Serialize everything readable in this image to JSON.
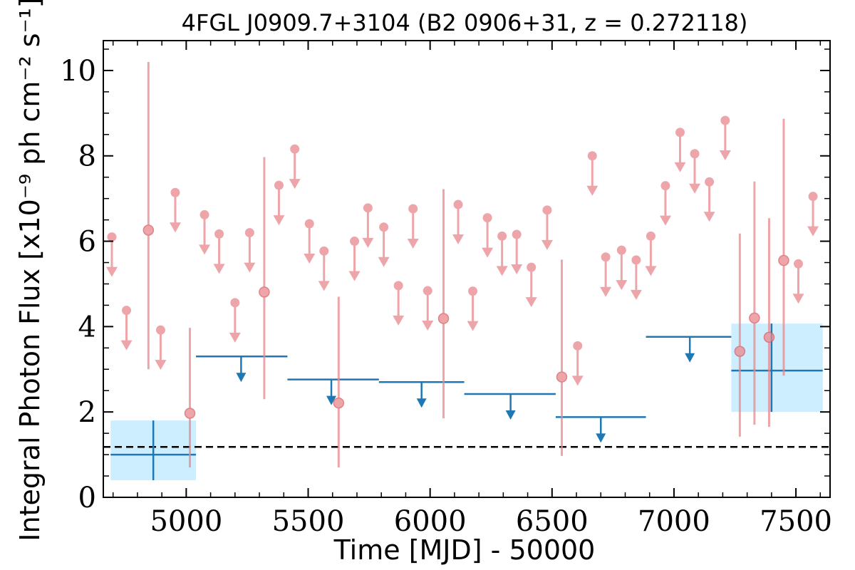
{
  "chart_data": {
    "type": "scatter",
    "title": "4FGL J0909.7+3104 (B2 0906+31, z = 0.272118)",
    "xlabel": "Time [MJD] - 50000",
    "ylabel": "Integral Photon Flux [x10⁻⁹ ph cm⁻² s⁻¹]",
    "xlim": [
      4660,
      7640
    ],
    "ylim": [
      0,
      10.7
    ],
    "x_ticks": [
      5000,
      5500,
      6000,
      6500,
      7000,
      7500
    ],
    "y_ticks": [
      0,
      2,
      4,
      6,
      8,
      10
    ],
    "grid": false,
    "colors": {
      "short_bins": "#e9888d",
      "long_bins": "#1f77b4",
      "detection_band": "#cdeeff",
      "reference_line": "#000000"
    },
    "short_bin_detections": [
      {
        "x": 4845,
        "y": 6.26,
        "ylow": 3.0,
        "yhigh": 10.2
      },
      {
        "x": 5015,
        "y": 1.97,
        "ylow": 0.7,
        "yhigh": 3.97
      },
      {
        "x": 5320,
        "y": 4.81,
        "ylow": 2.3,
        "yhigh": 7.97
      },
      {
        "x": 5625,
        "y": 2.21,
        "ylow": 0.7,
        "yhigh": 4.7
      },
      {
        "x": 6055,
        "y": 4.19,
        "ylow": 1.85,
        "yhigh": 7.22
      },
      {
        "x": 6540,
        "y": 2.82,
        "ylow": 0.97,
        "yhigh": 5.57
      },
      {
        "x": 7270,
        "y": 3.42,
        "ylow": 1.42,
        "yhigh": 6.18
      },
      {
        "x": 7330,
        "y": 4.2,
        "ylow": 1.7,
        "yhigh": 7.4
      },
      {
        "x": 7390,
        "y": 3.75,
        "ylow": 1.65,
        "yhigh": 6.54
      },
      {
        "x": 7450,
        "y": 5.55,
        "ylow": 2.85,
        "yhigh": 8.87
      }
    ],
    "short_bin_upper_limits": [
      {
        "x": 4695,
        "y": 6.1
      },
      {
        "x": 4755,
        "y": 4.38
      },
      {
        "x": 4895,
        "y": 3.92
      },
      {
        "x": 4955,
        "y": 7.14
      },
      {
        "x": 5075,
        "y": 6.62
      },
      {
        "x": 5135,
        "y": 6.17
      },
      {
        "x": 5200,
        "y": 4.56
      },
      {
        "x": 5260,
        "y": 6.2
      },
      {
        "x": 5380,
        "y": 7.31
      },
      {
        "x": 5445,
        "y": 8.16
      },
      {
        "x": 5505,
        "y": 6.41
      },
      {
        "x": 5565,
        "y": 5.77
      },
      {
        "x": 5690,
        "y": 6.0
      },
      {
        "x": 5745,
        "y": 6.78
      },
      {
        "x": 5810,
        "y": 6.33
      },
      {
        "x": 5870,
        "y": 4.96
      },
      {
        "x": 5930,
        "y": 6.76
      },
      {
        "x": 5990,
        "y": 4.84
      },
      {
        "x": 6115,
        "y": 6.86
      },
      {
        "x": 6175,
        "y": 4.83
      },
      {
        "x": 6235,
        "y": 6.55
      },
      {
        "x": 6295,
        "y": 6.12
      },
      {
        "x": 6355,
        "y": 6.16
      },
      {
        "x": 6415,
        "y": 5.39
      },
      {
        "x": 6480,
        "y": 6.73
      },
      {
        "x": 6605,
        "y": 3.55
      },
      {
        "x": 6665,
        "y": 8.0
      },
      {
        "x": 6720,
        "y": 5.63
      },
      {
        "x": 6785,
        "y": 5.79
      },
      {
        "x": 6845,
        "y": 5.56
      },
      {
        "x": 6905,
        "y": 6.12
      },
      {
        "x": 6965,
        "y": 7.3
      },
      {
        "x": 7025,
        "y": 8.55
      },
      {
        "x": 7085,
        "y": 8.05
      },
      {
        "x": 7145,
        "y": 7.39
      },
      {
        "x": 7210,
        "y": 8.83
      },
      {
        "x": 7510,
        "y": 5.47
      },
      {
        "x": 7570,
        "y": 7.05
      }
    ],
    "long_bin_detections": [
      {
        "x": 4865,
        "xmin": 4690,
        "xmax": 5040,
        "y": 1.0,
        "ylow": 0.4,
        "yhigh": 1.8
      },
      {
        "x": 7400,
        "xmin": 7235,
        "xmax": 7610,
        "y": 2.97,
        "ylow": 2.0,
        "yhigh": 4.07
      }
    ],
    "long_bin_upper_limits": [
      {
        "x": 5225,
        "xmin": 5040,
        "xmax": 5415,
        "y": 3.3
      },
      {
        "x": 5595,
        "xmin": 5415,
        "xmax": 5790,
        "y": 2.76
      },
      {
        "x": 5965,
        "xmin": 5790,
        "xmax": 6140,
        "y": 2.7
      },
      {
        "x": 6330,
        "xmin": 6140,
        "xmax": 6515,
        "y": 2.42
      },
      {
        "x": 6700,
        "xmin": 6515,
        "xmax": 6885,
        "y": 1.88
      },
      {
        "x": 7065,
        "xmin": 6885,
        "xmax": 7235,
        "y": 3.76
      }
    ],
    "reference_line": {
      "y": 1.18
    }
  }
}
